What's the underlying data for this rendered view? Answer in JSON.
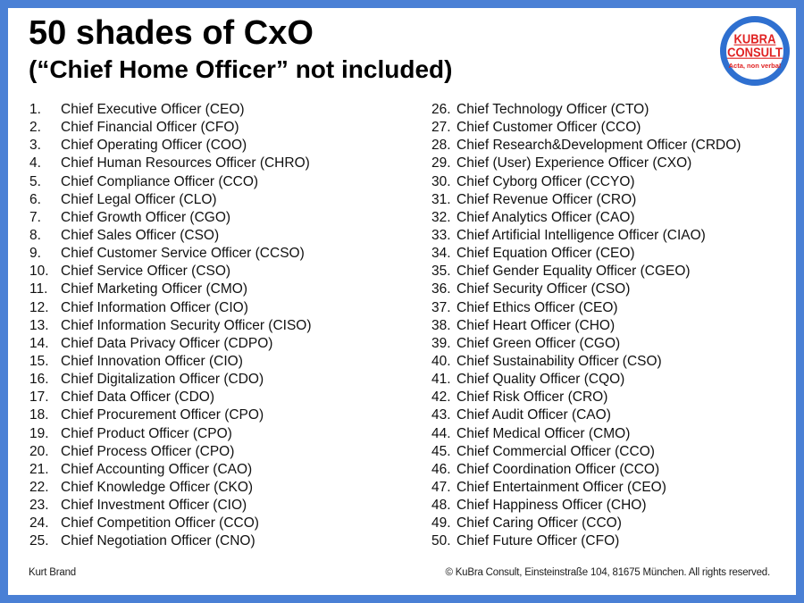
{
  "title": "50 shades of CxO",
  "subtitle": "(“Chief Home Officer” not included)",
  "logo": {
    "line1": "KUBRA",
    "line2": "CONSULT",
    "tagline": "Acta, non verba!"
  },
  "list": {
    "left": [
      {
        "num": "1.",
        "label": "Chief Executive Officer (CEO)"
      },
      {
        "num": "2.",
        "label": "Chief Financial Officer (CFO)"
      },
      {
        "num": "3.",
        "label": "Chief Operating Officer (COO)"
      },
      {
        "num": "4.",
        "label": "Chief Human Resources Officer (CHRO)"
      },
      {
        "num": "5.",
        "label": "Chief Compliance Officer (CCO)"
      },
      {
        "num": "6.",
        "label": "Chief Legal Officer (CLO)"
      },
      {
        "num": "7.",
        "label": "Chief Growth Officer (CGO)"
      },
      {
        "num": "8.",
        "label": "Chief Sales Officer (CSO)"
      },
      {
        "num": "9.",
        "label": "Chief Customer Service Officer (CCSO)"
      },
      {
        "num": "10.",
        "label": "Chief Service Officer (CSO)"
      },
      {
        "num": "11.",
        "label": "Chief Marketing Officer (CMO)"
      },
      {
        "num": "12.",
        "label": "Chief Information Officer (CIO)"
      },
      {
        "num": "13.",
        "label": "Chief Information Security Officer (CISO)"
      },
      {
        "num": "14.",
        "label": "Chief Data Privacy Officer (CDPO)"
      },
      {
        "num": "15.",
        "label": "Chief Innovation Officer (CIO)"
      },
      {
        "num": "16.",
        "label": "Chief Digitalization Officer (CDO)"
      },
      {
        "num": "17.",
        "label": "Chief Data Officer (CDO)"
      },
      {
        "num": "18.",
        "label": "Chief Procurement Officer (CPO)"
      },
      {
        "num": "19.",
        "label": "Chief Product Officer (CPO)"
      },
      {
        "num": "20.",
        "label": "Chief Process Officer (CPO)"
      },
      {
        "num": "21.",
        "label": "Chief Accounting Officer (CAO)"
      },
      {
        "num": "22.",
        "label": "Chief Knowledge Officer (CKO)"
      },
      {
        "num": "23.",
        "label": "Chief Investment Officer (CIO)"
      },
      {
        "num": "24.",
        "label": "Chief Competition Officer (CCO)"
      },
      {
        "num": "25.",
        "label": "Chief Negotiation Officer (CNO)"
      }
    ],
    "right": [
      {
        "num": "26.",
        "label": "Chief Technology Officer (CTO)"
      },
      {
        "num": "27.",
        "label": "Chief Customer Officer (CCO)"
      },
      {
        "num": "28.",
        "label": "Chief Research&Development Officer (CRDO)"
      },
      {
        "num": "29.",
        "label": "Chief (User) Experience Officer (CXO)"
      },
      {
        "num": "30.",
        "label": "Chief Cyborg Officer (CCYO)"
      },
      {
        "num": "31.",
        "label": "Chief Revenue Officer (CRO)"
      },
      {
        "num": "32.",
        "label": "Chief Analytics Officer (CAO)"
      },
      {
        "num": "33.",
        "label": "Chief Artificial Intelligence Officer (CIAO)"
      },
      {
        "num": "34.",
        "label": "Chief Equation Officer (CEO)"
      },
      {
        "num": "35.",
        "label": "Chief Gender Equality Officer (CGEO)"
      },
      {
        "num": "36.",
        "label": "Chief Security Officer (CSO)"
      },
      {
        "num": "37.",
        "label": "Chief Ethics Officer (CEO)"
      },
      {
        "num": "38.",
        "label": "Chief Heart Officer (CHO)"
      },
      {
        "num": "39.",
        "label": "Chief Green Officer (CGO)"
      },
      {
        "num": "40.",
        "label": "Chief Sustainability Officer (CSO)"
      },
      {
        "num": "41.",
        "label": "Chief Quality Officer (CQO)"
      },
      {
        "num": "42.",
        "label": "Chief Risk Officer (CRO)"
      },
      {
        "num": "43.",
        "label": "Chief Audit Officer (CAO)"
      },
      {
        "num": "44.",
        "label": "Chief Medical Officer (CMO)"
      },
      {
        "num": "45.",
        "label": "Chief Commercial Officer (CCO)"
      },
      {
        "num": "46.",
        "label": "Chief Coordination Officer (CCO)"
      },
      {
        "num": "47.",
        "label": "Chief Entertainment Officer (CEO)"
      },
      {
        "num": "48.",
        "label": "Chief Happiness Officer (CHO)"
      },
      {
        "num": "49.",
        "label": "Chief Caring Officer (CCO)"
      },
      {
        "num": "50.",
        "label": "Chief Future Officer (CFO)"
      }
    ]
  },
  "footer": {
    "author": "Kurt Brand",
    "copyright": "© KuBra Consult, Einsteinstraße 104, 81675 München. All rights reserved."
  },
  "colors": {
    "frame_blue": "#4a80d5",
    "logo_blue": "#2f70d0",
    "logo_red": "#e02222"
  }
}
